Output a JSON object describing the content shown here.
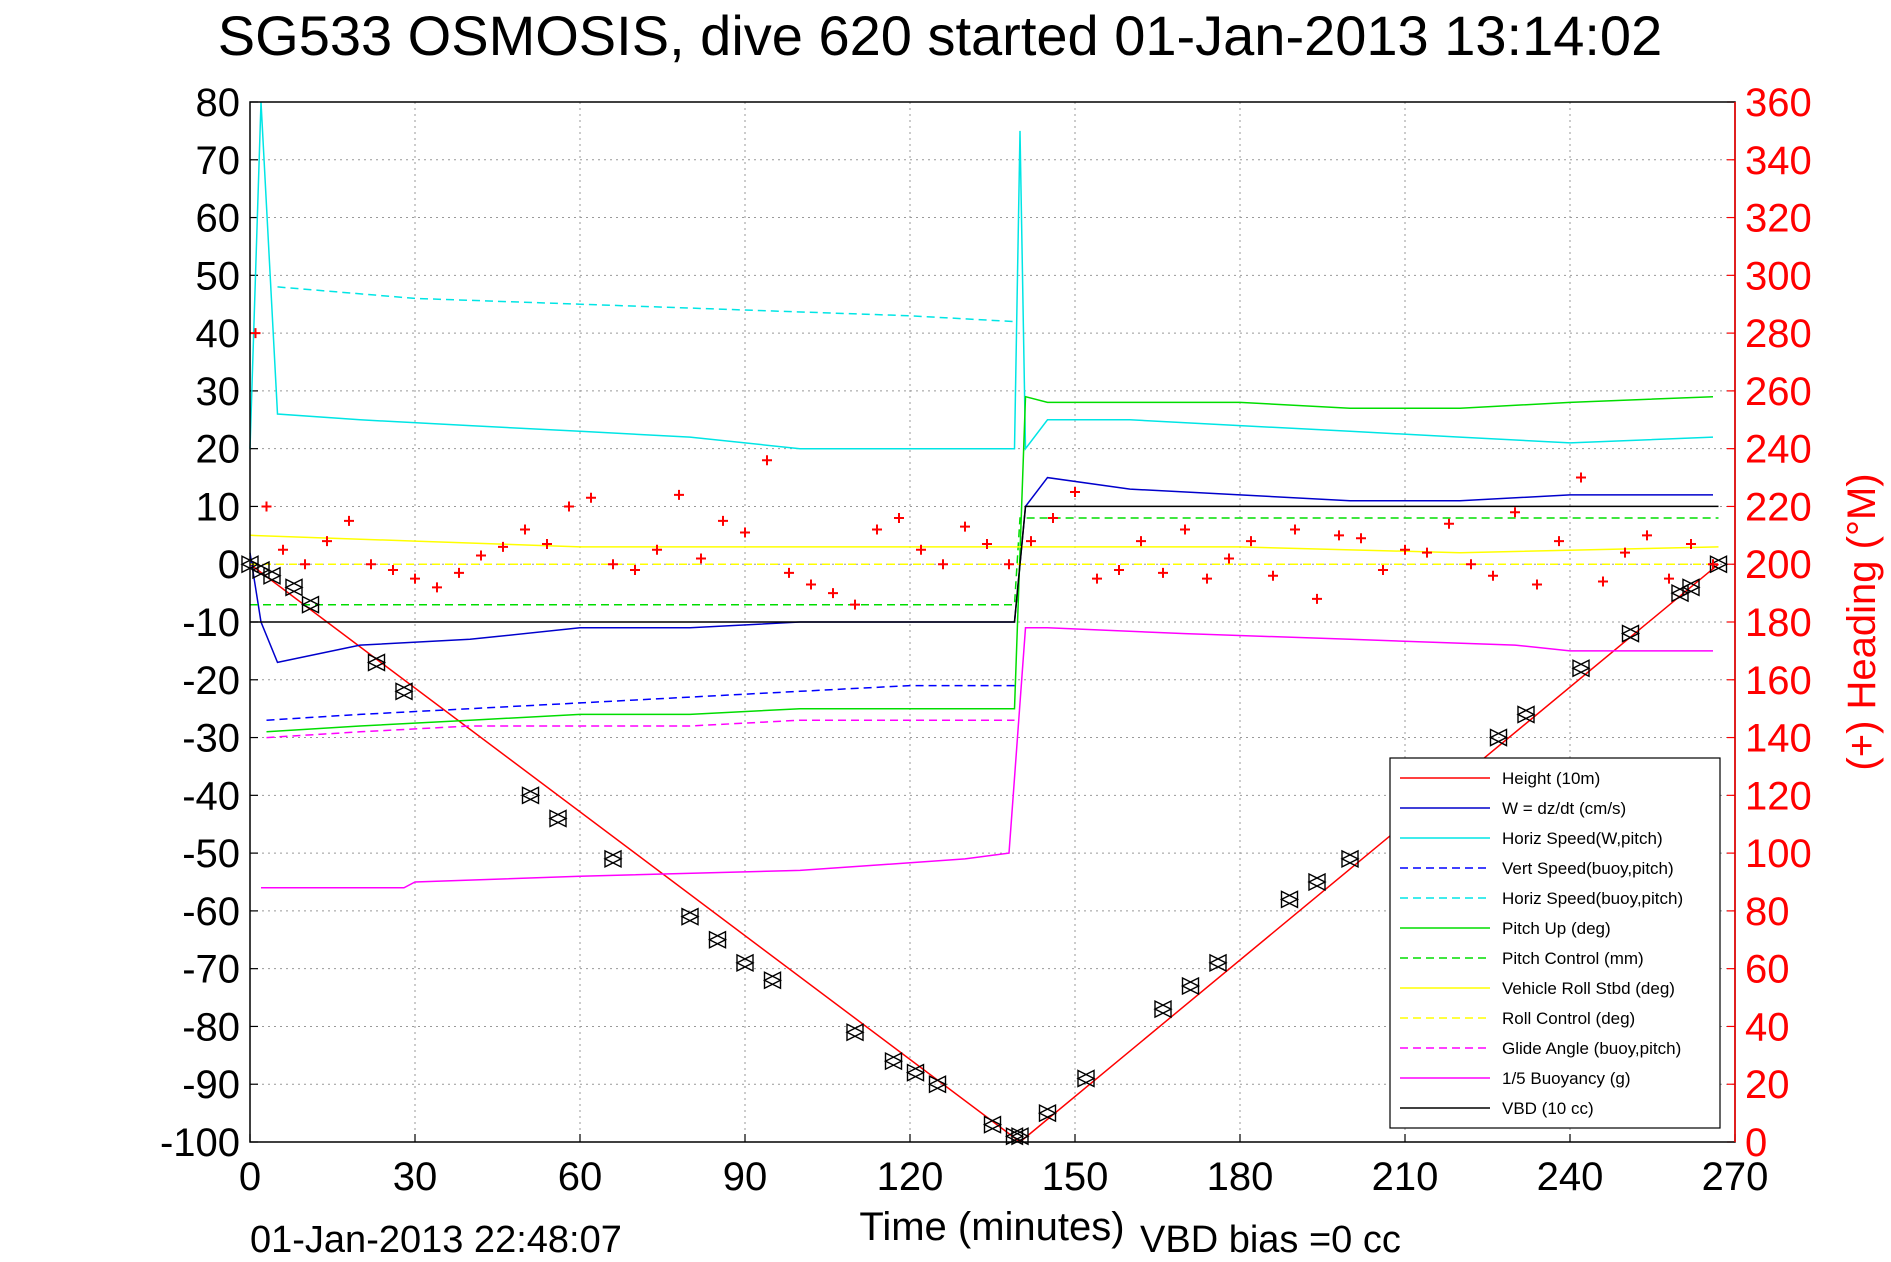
{
  "chart_data": {
    "type": "line",
    "title": "SG533 OSMOSIS, dive 620 started 01-Jan-2013 13:14:02",
    "xlabel": "Time (minutes)",
    "ylabel_right": "(+) Heading (°M)",
    "footer_left": "01-Jan-2013 22:48:07",
    "footer_right": "VBD bias =0 cc",
    "xlim": [
      0,
      270
    ],
    "ylim": [
      -100,
      80
    ],
    "ylim_right": [
      0,
      360
    ],
    "x_ticks": [
      "0",
      "30",
      "60",
      "90",
      "120",
      "150",
      "180",
      "210",
      "240",
      "270"
    ],
    "y_ticks": [
      "80",
      "70",
      "60",
      "50",
      "40",
      "30",
      "20",
      "10",
      "0",
      "-10",
      "-20",
      "-30",
      "-40",
      "-50",
      "-60",
      "-70",
      "-80",
      "-90",
      "-100"
    ],
    "y_ticks_right": [
      "360",
      "340",
      "320",
      "300",
      "280",
      "260",
      "240",
      "220",
      "200",
      "180",
      "160",
      "140",
      "120",
      "100",
      "80",
      "60",
      "40",
      "20",
      "0"
    ],
    "grid": true,
    "legend_position": "lower-right",
    "legend": [
      {
        "label": "Height (10m)",
        "color": "#ff0000",
        "dash": "solid"
      },
      {
        "label": "W = dz/dt (cm/s)",
        "color": "#0000cc",
        "dash": "solid"
      },
      {
        "label": "Horiz Speed(W,pitch)",
        "color": "#00e5e5",
        "dash": "solid"
      },
      {
        "label": "Vert Speed(buoy,pitch)",
        "color": "#0000ff",
        "dash": "dashed"
      },
      {
        "label": "Horiz Speed(buoy,pitch)",
        "color": "#00e5e5",
        "dash": "dashed"
      },
      {
        "label": "Pitch Up (deg)",
        "color": "#00dd00",
        "dash": "solid"
      },
      {
        "label": "Pitch Control (mm)",
        "color": "#00dd00",
        "dash": "dashed"
      },
      {
        "label": "Vehicle Roll Stbd (deg)",
        "color": "#ffff00",
        "dash": "solid"
      },
      {
        "label": "Roll Control (deg)",
        "color": "#ffff00",
        "dash": "dashed"
      },
      {
        "label": "Glide Angle (buoy,pitch)",
        "color": "#ff00ff",
        "dash": "dashed"
      },
      {
        "label": "1/5 Buoyancy (g)",
        "color": "#ff00ff",
        "dash": "solid"
      },
      {
        "label": "VBD (10 cc)",
        "color": "#000000",
        "dash": "solid"
      }
    ],
    "series": [
      {
        "name": "Height (10m)",
        "color": "#ff0000",
        "dash": "solid",
        "x": [
          0,
          140,
          267
        ],
        "y": [
          0,
          -100,
          0
        ]
      },
      {
        "name": "W = dz/dt (cm/s)",
        "color": "#0000cc",
        "dash": "solid",
        "x": [
          0,
          2,
          5,
          20,
          40,
          60,
          80,
          100,
          120,
          139,
          141,
          145,
          160,
          180,
          200,
          220,
          240,
          266
        ],
        "y": [
          2,
          -10,
          -17,
          -14,
          -13,
          -11,
          -11,
          -10,
          -10,
          -10,
          10,
          15,
          13,
          12,
          11,
          11,
          12,
          12
        ]
      },
      {
        "name": "Horiz Speed(W,pitch)",
        "color": "#00e5e5",
        "dash": "solid",
        "x": [
          0,
          2,
          5,
          20,
          40,
          60,
          80,
          100,
          120,
          137,
          139,
          140,
          141,
          145,
          160,
          180,
          200,
          220,
          240,
          266
        ],
        "y": [
          20,
          80,
          26,
          25,
          24,
          23,
          22,
          20,
          20,
          20,
          20,
          75,
          20,
          25,
          25,
          24,
          23,
          22,
          21,
          22
        ]
      },
      {
        "name": "Vert Speed(buoy,pitch)",
        "color": "#0000ff",
        "dash": "dashed",
        "x": [
          3,
          20,
          40,
          60,
          80,
          100,
          120,
          139
        ],
        "y": [
          -27,
          -26,
          -25,
          -24,
          -23,
          -22,
          -21,
          -21
        ]
      },
      {
        "name": "Horiz Speed(buoy,pitch)",
        "color": "#00e5e5",
        "dash": "dashed",
        "x": [
          5,
          30,
          60,
          90,
          120,
          139
        ],
        "y": [
          48,
          46,
          45,
          44,
          43,
          42
        ]
      },
      {
        "name": "Pitch Up (deg)",
        "color": "#00dd00",
        "dash": "solid",
        "x": [
          3,
          20,
          40,
          60,
          80,
          100,
          120,
          139,
          141,
          145,
          160,
          180,
          200,
          220,
          240,
          266
        ],
        "y": [
          -29,
          -28,
          -27,
          -26,
          -26,
          -25,
          -25,
          -25,
          29,
          28,
          28,
          28,
          27,
          27,
          28,
          29
        ]
      },
      {
        "name": "Pitch Control (mm)",
        "color": "#00dd00",
        "dash": "dashed",
        "x": [
          0,
          139,
          140,
          267
        ],
        "y": [
          -7,
          -7,
          8,
          8
        ]
      },
      {
        "name": "Vehicle Roll Stbd (deg)",
        "color": "#ffff00",
        "dash": "solid",
        "x": [
          0,
          30,
          60,
          90,
          139,
          140,
          180,
          220,
          267
        ],
        "y": [
          5,
          4,
          3,
          3,
          3,
          3,
          3,
          2,
          3
        ]
      },
      {
        "name": "Roll Control (deg)",
        "color": "#ffff00",
        "dash": "dashed",
        "x": [
          0,
          267
        ],
        "y": [
          0,
          0
        ]
      },
      {
        "name": "Glide Angle (buoy,pitch)",
        "color": "#ff00ff",
        "dash": "dashed",
        "x": [
          3,
          20,
          40,
          60,
          80,
          100,
          120,
          139
        ],
        "y": [
          -30,
          -29,
          -28,
          -28,
          -28,
          -27,
          -27,
          -27
        ]
      },
      {
        "name": "1/5 Buoyancy (g)",
        "color": "#ff00ff",
        "dash": "solid",
        "x": [
          2,
          28,
          30,
          60,
          100,
          130,
          138,
          141,
          145,
          170,
          200,
          230,
          240,
          260,
          266
        ],
        "y": [
          -56,
          -56,
          -55,
          -54,
          -53,
          -51,
          -50,
          -11,
          -11,
          -12,
          -13,
          -14,
          -15,
          -15,
          -15
        ]
      },
      {
        "name": "VBD (10 cc)",
        "color": "#000000",
        "dash": "solid",
        "x": [
          0,
          139,
          140,
          141,
          267
        ],
        "y": [
          -10,
          -10,
          0,
          10,
          10
        ]
      },
      {
        "name": "Heading",
        "color": "#ff0000",
        "marker": "+",
        "axis": "right",
        "x": [
          1,
          3,
          6,
          10,
          14,
          18,
          22,
          26,
          30,
          34,
          38,
          42,
          46,
          50,
          54,
          58,
          62,
          66,
          70,
          74,
          78,
          82,
          86,
          90,
          94,
          98,
          102,
          106,
          110,
          114,
          118,
          122,
          126,
          130,
          134,
          138,
          142,
          146,
          150,
          154,
          158,
          162,
          166,
          170,
          174,
          178,
          182,
          186,
          190,
          194,
          198,
          202,
          206,
          210,
          214,
          218,
          222,
          226,
          230,
          234,
          238,
          242,
          246,
          250,
          254,
          258,
          262,
          266
        ],
        "y": [
          280,
          220,
          205,
          200,
          208,
          215,
          200,
          198,
          195,
          192,
          197,
          203,
          206,
          212,
          207,
          220,
          223,
          200,
          198,
          205,
          224,
          202,
          215,
          211,
          236,
          197,
          193,
          190,
          186,
          212,
          216,
          205,
          200,
          213,
          207,
          200,
          208,
          216,
          225,
          195,
          198,
          208,
          197,
          212,
          195,
          202,
          208,
          196,
          212,
          188,
          210,
          209,
          198,
          205,
          204,
          214,
          200,
          196,
          218,
          193,
          208,
          230,
          194,
          204,
          210,
          195,
          207,
          200
        ]
      }
    ],
    "waypoint_markers": {
      "symbol": "triangle-pair",
      "color": "#000000",
      "x": [
        0,
        2,
        4,
        8,
        11,
        23,
        28,
        51,
        56,
        66,
        80,
        85,
        90,
        95,
        110,
        117,
        121,
        125,
        135,
        139,
        140,
        145,
        152,
        166,
        171,
        176,
        189,
        194,
        200,
        227,
        232,
        242,
        251,
        260,
        262,
        267
      ],
      "y": [
        0,
        -1,
        -2,
        -4,
        -7,
        -17,
        -22,
        -40,
        -44,
        -51,
        -61,
        -65,
        -69,
        -72,
        -81,
        -86,
        -88,
        -90,
        -97,
        -99,
        -99,
        -95,
        -89,
        -77,
        -73,
        -69,
        -58,
        -55,
        -51,
        -30,
        -26,
        -18,
        -12,
        -5,
        -4,
        0
      ]
    }
  }
}
